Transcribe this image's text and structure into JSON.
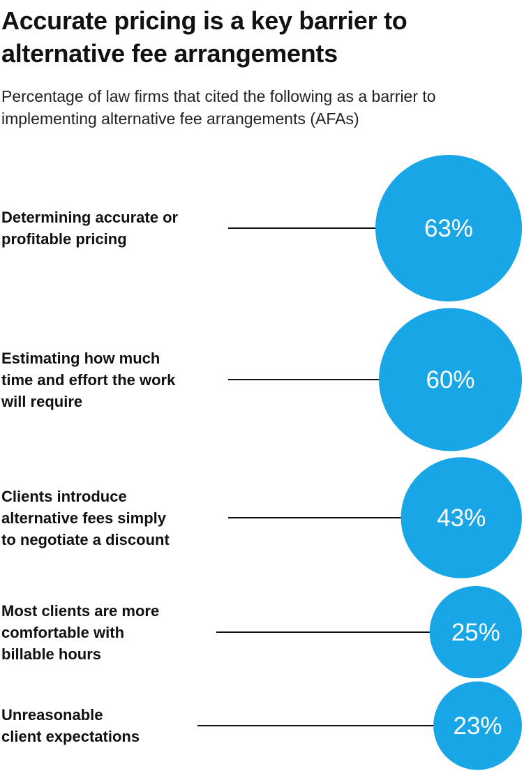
{
  "title": "Accurate pricing is a key barrier to alternative fee arrangements",
  "subtitle": "Percentage of law firms that cited the following as a barrier to implementing alternative fee arrangements (AFAs)",
  "colors": {
    "bubble": "#19a6e6",
    "bubble_text": "#ffffff",
    "line": "#111111"
  },
  "chart_data": {
    "type": "bubble",
    "title": "Accurate pricing is a key barrier to alternative fee arrangements",
    "subtitle": "Percentage of law firms that cited the following as a barrier to implementing alternative fee arrangements (AFAs)",
    "categories": [
      "Determining accurate or profitable pricing",
      "Estimating how much time and effort the work will require",
      "Clients introduce alternative fees simply to negotiate a discount",
      "Most clients are more comfortable with billable hours",
      "Unreasonable client expectations"
    ],
    "label_lines": [
      [
        "Determining accurate or",
        "profitable pricing"
      ],
      [
        "Estimating how much",
        "time and effort the work",
        "will require"
      ],
      [
        "Clients introduce",
        "alternative fees simply",
        "to negotiate a discount"
      ],
      [
        "Most clients are more",
        "comfortable with",
        "billable hours"
      ],
      [
        "Unreasonable",
        "client expectations"
      ]
    ],
    "values": [
      63,
      60,
      43,
      25,
      23
    ],
    "value_labels": [
      "63%",
      "60%",
      "43%",
      "25%",
      "23%"
    ],
    "unit": "%"
  }
}
